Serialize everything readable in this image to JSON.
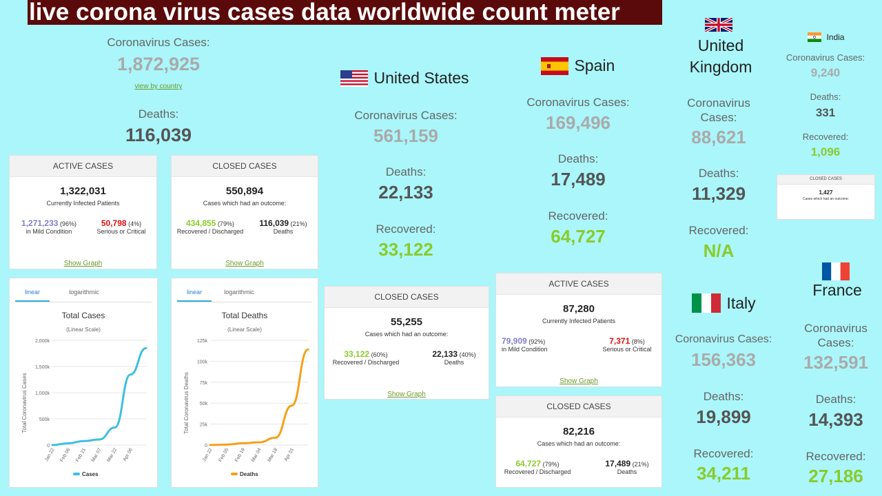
{
  "header": {
    "title": "live corona virus cases data worldwide count meter"
  },
  "world": {
    "cases_label": "Coronavirus Cases:",
    "cases": "1,872,925",
    "link": "view by country",
    "deaths_label": "Deaths:",
    "deaths": "116,039"
  },
  "world_active": {
    "header": "ACTIVE CASES",
    "total": "1,322,031",
    "subtitle": "Currently Infected Patients",
    "mild_value": "1,271,233",
    "mild_pct": "(96%)",
    "mild_label": "in Mild Condition",
    "serious_value": "50,798",
    "serious_pct": "(4%)",
    "serious_label": "Serious or Critical",
    "link": "Show Graph"
  },
  "world_closed": {
    "header": "CLOSED CASES",
    "total": "550,894",
    "subtitle": "Cases which had an outcome:",
    "recovered_value": "434,855",
    "recovered_pct": "(79%)",
    "recovered_label": "Recovered / Discharged",
    "deaths_value": "116,039",
    "deaths_pct": "(21%)",
    "deaths_label": "Deaths",
    "link": "Show Graph"
  },
  "tabs": {
    "linear": "linear",
    "log": "logarithmic"
  },
  "chart_cases_text": {
    "title": "Total Cases",
    "subtitle": "(Linear Scale)",
    "ylabel": "Total Coronavirus Cases",
    "legend": "Cases"
  },
  "chart_deaths_text": {
    "title": "Total Deaths",
    "subtitle": "(Linear Scale)",
    "ylabel": "Total Coronavirus Deaths",
    "legend": "Deaths"
  },
  "chart_data": [
    {
      "type": "line",
      "title": "Total Cases",
      "subtitle": "(Linear Scale)",
      "ylabel": "Total Coronavirus Cases",
      "x": [
        "Jan 22",
        "Feb 06",
        "Feb 21",
        "Mar 07",
        "Mar 22",
        "Apr 06",
        "Apr 12"
      ],
      "series": [
        {
          "name": "Cases",
          "color": "#3dbfe0",
          "values": [
            580,
            31000,
            76000,
            105000,
            335000,
            1345000,
            1850000
          ]
        }
      ],
      "yticks": [
        "0",
        "500k",
        "1,000k",
        "1,500k",
        "2,000k"
      ],
      "ylim": [
        0,
        2000000
      ],
      "xticks": [
        "Jan 22",
        "Feb 06",
        "Feb 21",
        "Mar 07",
        "Mar 22",
        "Apr 06"
      ]
    },
    {
      "type": "line",
      "title": "Total Deaths",
      "subtitle": "(Linear Scale)",
      "ylabel": "Total Coronavirus Deaths",
      "x": [
        "Jan 22",
        "Feb 05",
        "Feb 19",
        "Mar 04",
        "Mar 18",
        "Apr 01",
        "Apr 12"
      ],
      "series": [
        {
          "name": "Deaths",
          "color": "#f5a01a",
          "values": [
            17,
            560,
            2120,
            3200,
            8700,
            47000,
            114000
          ]
        }
      ],
      "yticks": [
        "0",
        "25k",
        "50k",
        "75k",
        "100k",
        "125k"
      ],
      "ylim": [
        0,
        125000
      ],
      "xticks": [
        "Jan 22",
        "Feb 05",
        "Feb 19",
        "Mar 04",
        "Mar 18",
        "Apr 01"
      ]
    }
  ],
  "us": {
    "name": "United States",
    "cases_label": "Coronavirus Cases:",
    "cases": "561,159",
    "deaths_label": "Deaths:",
    "deaths": "22,133",
    "recovered_label": "Recovered:",
    "recovered": "33,122",
    "closed": {
      "header": "CLOSED CASES",
      "total": "55,255",
      "subtitle": "Cases which had an outcome:",
      "recovered_value": "33,122",
      "recovered_pct": "(60%)",
      "recovered_label": "Recovered / Discharged",
      "deaths_value": "22,133",
      "deaths_pct": "(40%)",
      "deaths_label": "Deaths",
      "link": "Show Graph"
    }
  },
  "spain": {
    "name": "Spain",
    "cases_label": "Coronavirus Cases:",
    "cases": "169,496",
    "deaths_label": "Deaths:",
    "deaths": "17,489",
    "recovered_label": "Recovered:",
    "recovered": "64,727",
    "active": {
      "header": "ACTIVE CASES",
      "total": "87,280",
      "subtitle": "Currently Infected Patients",
      "mild_value": "79,909",
      "mild_pct": "(92%)",
      "mild_label": "in Mild Condition",
      "serious_value": "7,371",
      "serious_pct": "(8%)",
      "serious_label": "Serious or Critical",
      "link": "Show Graph"
    },
    "closed": {
      "header": "CLOSED CASES",
      "total": "82,216",
      "subtitle": "Cases which had an outcome:",
      "recovered_value": "64,727",
      "recovered_pct": "(79%)",
      "recovered_label": "Recovered / Discharged",
      "deaths_value": "17,489",
      "deaths_pct": "(21%)",
      "deaths_label": "Deaths"
    }
  },
  "uk": {
    "name_line1": "United",
    "name_line2": "Kingdom",
    "cases_label_1": "Coronavirus",
    "cases_label_2": "Cases:",
    "cases": "88,621",
    "deaths_label": "Deaths:",
    "deaths": "11,329",
    "recovered_label": "Recovered:",
    "recovered": "N/A"
  },
  "italy": {
    "name": "Italy",
    "cases_label": "Coronavirus Cases:",
    "cases": "156,363",
    "deaths_label": "Deaths:",
    "deaths": "19,899",
    "recovered_label": "Recovered:",
    "recovered": "34,211"
  },
  "india": {
    "name": "India",
    "cases_label": "Coronavirus Cases:",
    "cases": "9,240",
    "deaths_label": "Deaths:",
    "deaths": "331",
    "recovered_label": "Recovered:",
    "recovered": "1,096",
    "closed": {
      "header": "CLOSED CASES",
      "total": "1,427",
      "subtitle": "Cases which had an outcome:"
    }
  },
  "france": {
    "name": "France",
    "cases_label_1": "Coronavirus",
    "cases_label_2": "Cases:",
    "cases": "132,591",
    "deaths_label": "Deaths:",
    "deaths": "14,393",
    "recovered_label": "Recovered:",
    "recovered": "27,186"
  }
}
